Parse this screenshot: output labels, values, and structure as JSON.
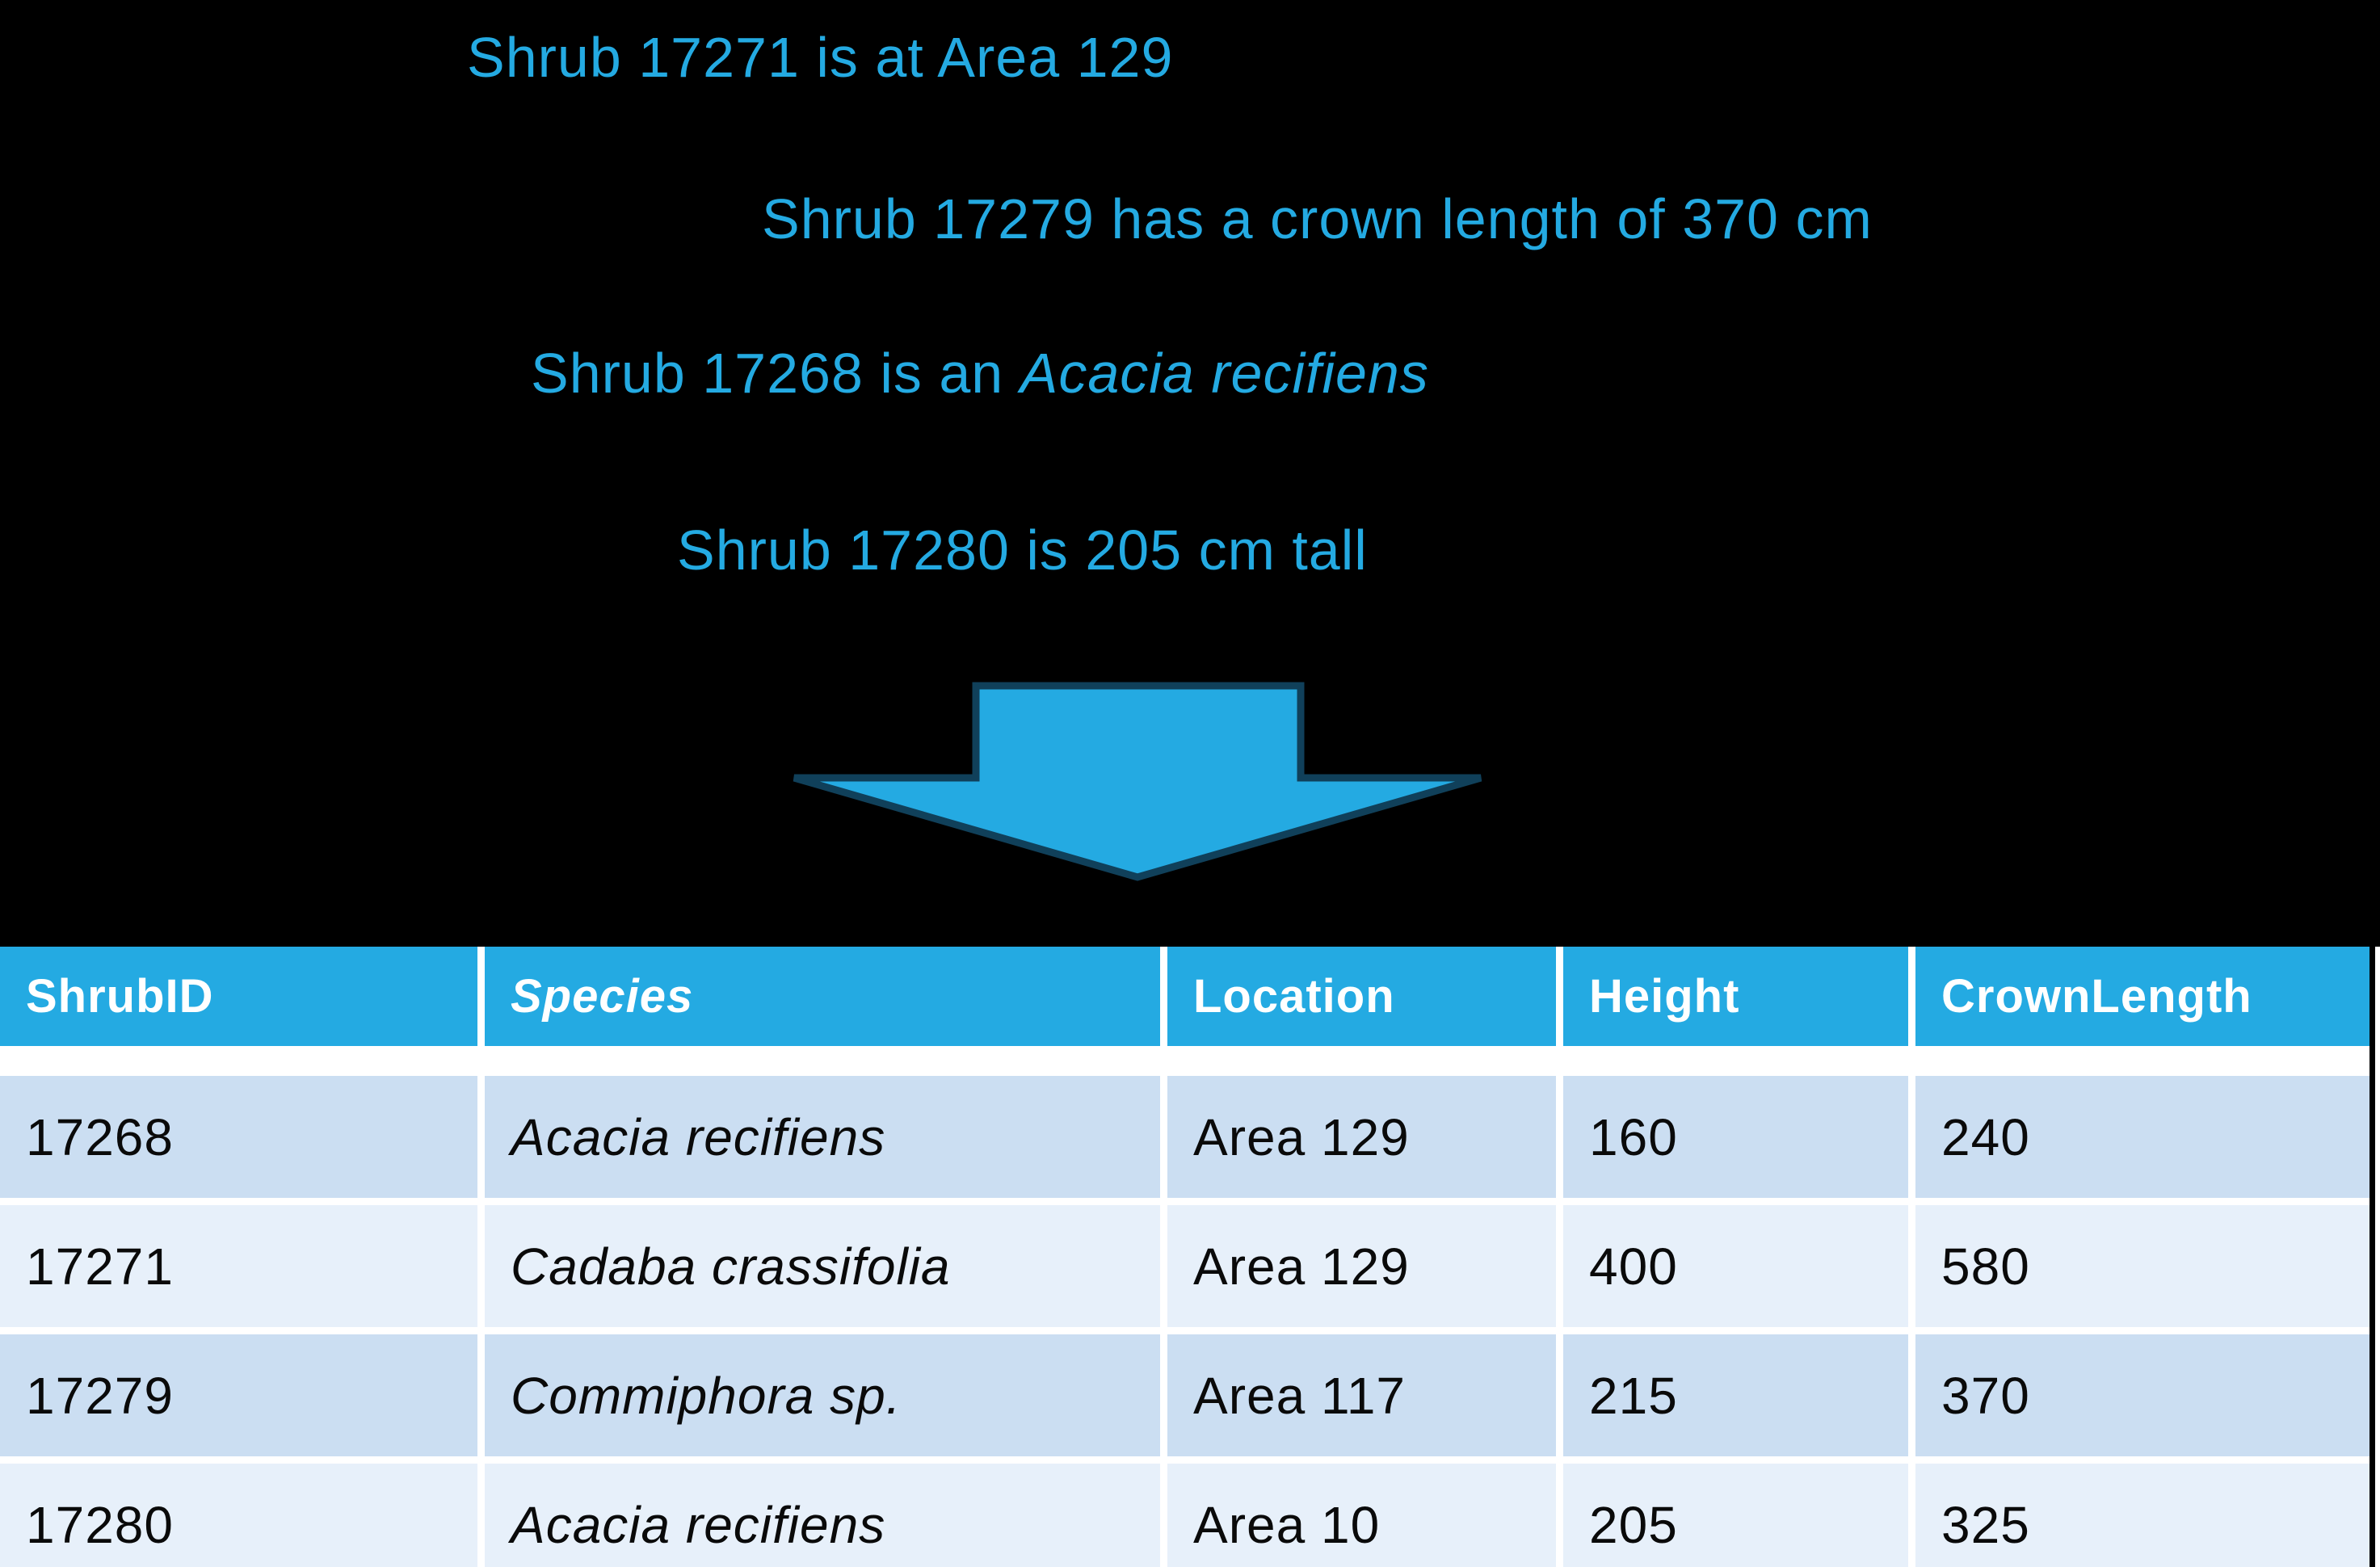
{
  "slide": {
    "background_color": "#000000",
    "accent_color": "#24AAE2",
    "arrow_outline_color": "#10405A",
    "row_band_dark": "#CBDEF2",
    "row_band_light": "#E7F0FA"
  },
  "facts": [
    {
      "segments": [
        {
          "text": "Shrub 17271 is at Area 129",
          "italic": false
        }
      ]
    },
    {
      "segments": [
        {
          "text": "Shrub 17279 has a crown length of 370 cm",
          "italic": false
        }
      ]
    },
    {
      "segments": [
        {
          "text": "Shrub 17268 is an ",
          "italic": false
        },
        {
          "text": "Acacia recifiens",
          "italic": true
        }
      ]
    },
    {
      "segments": [
        {
          "text": "Shrub 17280 is 205 cm tall",
          "italic": false
        }
      ]
    }
  ],
  "arrow": {
    "icon": "down-arrow-icon",
    "direction": "down"
  },
  "table": {
    "columns": [
      "ShrubID",
      "Species",
      "Location",
      "Height",
      "CrownLength"
    ],
    "rows": [
      [
        "17268",
        "Acacia recifiens",
        "Area 129",
        "160",
        "240"
      ],
      [
        "17271",
        "Cadaba crassifolia",
        "Area 129",
        "400",
        "580"
      ],
      [
        "17279",
        "Commiphora sp.",
        "Area 117",
        "215",
        "370"
      ],
      [
        "17280",
        "Acacia recifiens",
        "Area 10",
        "205",
        "325"
      ]
    ]
  }
}
